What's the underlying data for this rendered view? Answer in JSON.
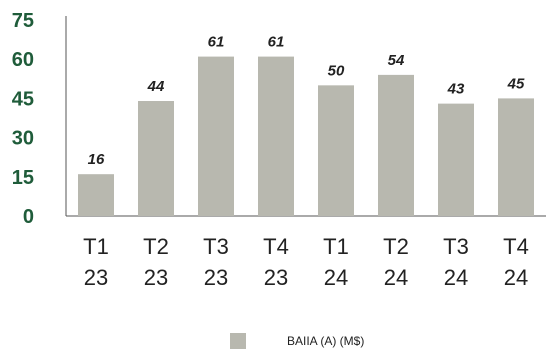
{
  "chart_data": {
    "type": "bar",
    "categories": [
      [
        "T1",
        "23"
      ],
      [
        "T2",
        "23"
      ],
      [
        "T3",
        "23"
      ],
      [
        "T4",
        "23"
      ],
      [
        "T1",
        "24"
      ],
      [
        "T2",
        "24"
      ],
      [
        "T3",
        "24"
      ],
      [
        "T4",
        "24"
      ]
    ],
    "series": [
      {
        "name": "BAIIA (A) (M$)",
        "values": [
          16,
          44,
          61,
          61,
          50,
          54,
          43,
          45
        ],
        "color": "#b8b8af"
      }
    ],
    "yticks": [
      0,
      15,
      30,
      45,
      60,
      75
    ],
    "ylim": [
      0,
      75
    ],
    "grid": false,
    "legend": "bottom-center",
    "colors": {
      "ytick_text": "#1f5c3a",
      "axis": "#555555"
    }
  }
}
